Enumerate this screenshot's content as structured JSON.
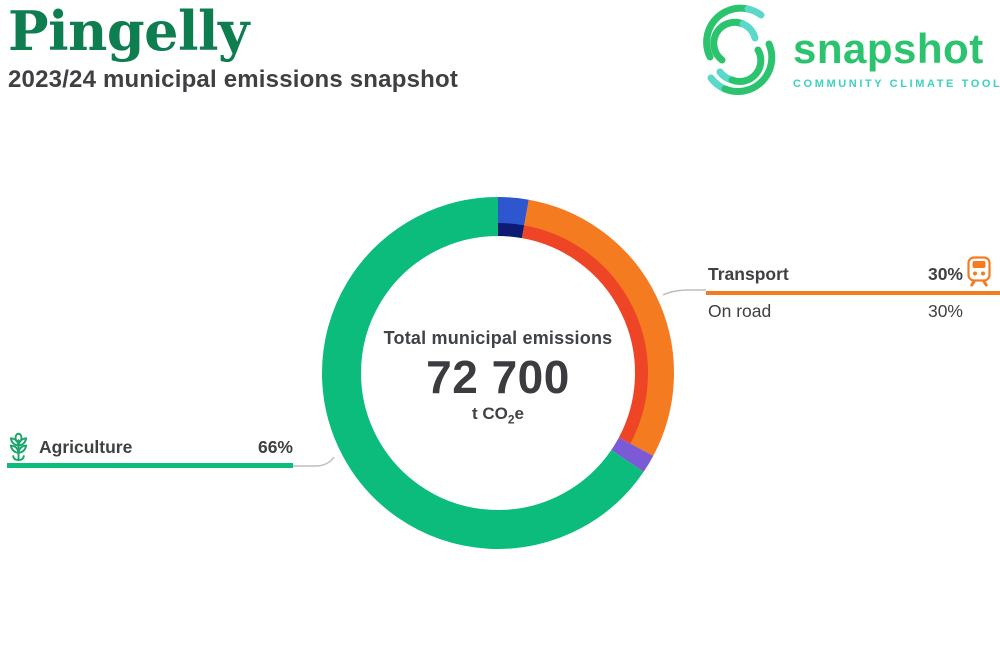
{
  "header": {
    "title": "Pingelly",
    "subtitle": "2023/24 municipal emissions snapshot"
  },
  "logo": {
    "wordmark": "snapshot",
    "tagline": "COMMUNITY CLIMATE TOOL"
  },
  "chart_data": {
    "type": "donut",
    "title": "Total municipal emissions",
    "center": {
      "title": "Total municipal emissions",
      "value": "72 700",
      "unit_prefix": "t CO",
      "unit_sub": "2",
      "unit_suffix": "e"
    },
    "legend_position": "callouts",
    "segments": [
      {
        "label": "",
        "pct": 2.8,
        "outer_color": "#2d56cf",
        "inner_color": "#0e1b75"
      },
      {
        "label": "Transport",
        "pct": 30,
        "outer_color": "#f57b20",
        "inner_color": "#ee4526"
      },
      {
        "label": "",
        "pct": 1.7,
        "outer_color": "#7a5bd5",
        "inner_color": "#7a5bd5"
      },
      {
        "label": "Agriculture",
        "pct": 65.5,
        "outer_color": "#0cbc7d",
        "inner_color": "#0cbc7d"
      }
    ]
  },
  "callouts": {
    "transport": {
      "label": "Transport",
      "value": "30%",
      "icon": "train-icon",
      "rows": [
        {
          "label": "On road",
          "value": "30%"
        }
      ]
    },
    "agriculture": {
      "label": "Agriculture",
      "value": "66%",
      "icon": "wheat-icon"
    }
  },
  "colors": {
    "title_green": "#0e7d50",
    "brand_green": "#2cc36f",
    "brand_teal": "#3ed0c0",
    "text_dark": "#3f4043",
    "chart_green": "#0cbc7d",
    "chart_blue": "#2d56cf",
    "chart_navy": "#0e1b75",
    "chart_orange": "#f57b20",
    "chart_red_orange": "#ee4526",
    "chart_purple": "#7a5bd5",
    "connector_gray": "#bcbec0",
    "icon_green": "#1ca46a"
  }
}
